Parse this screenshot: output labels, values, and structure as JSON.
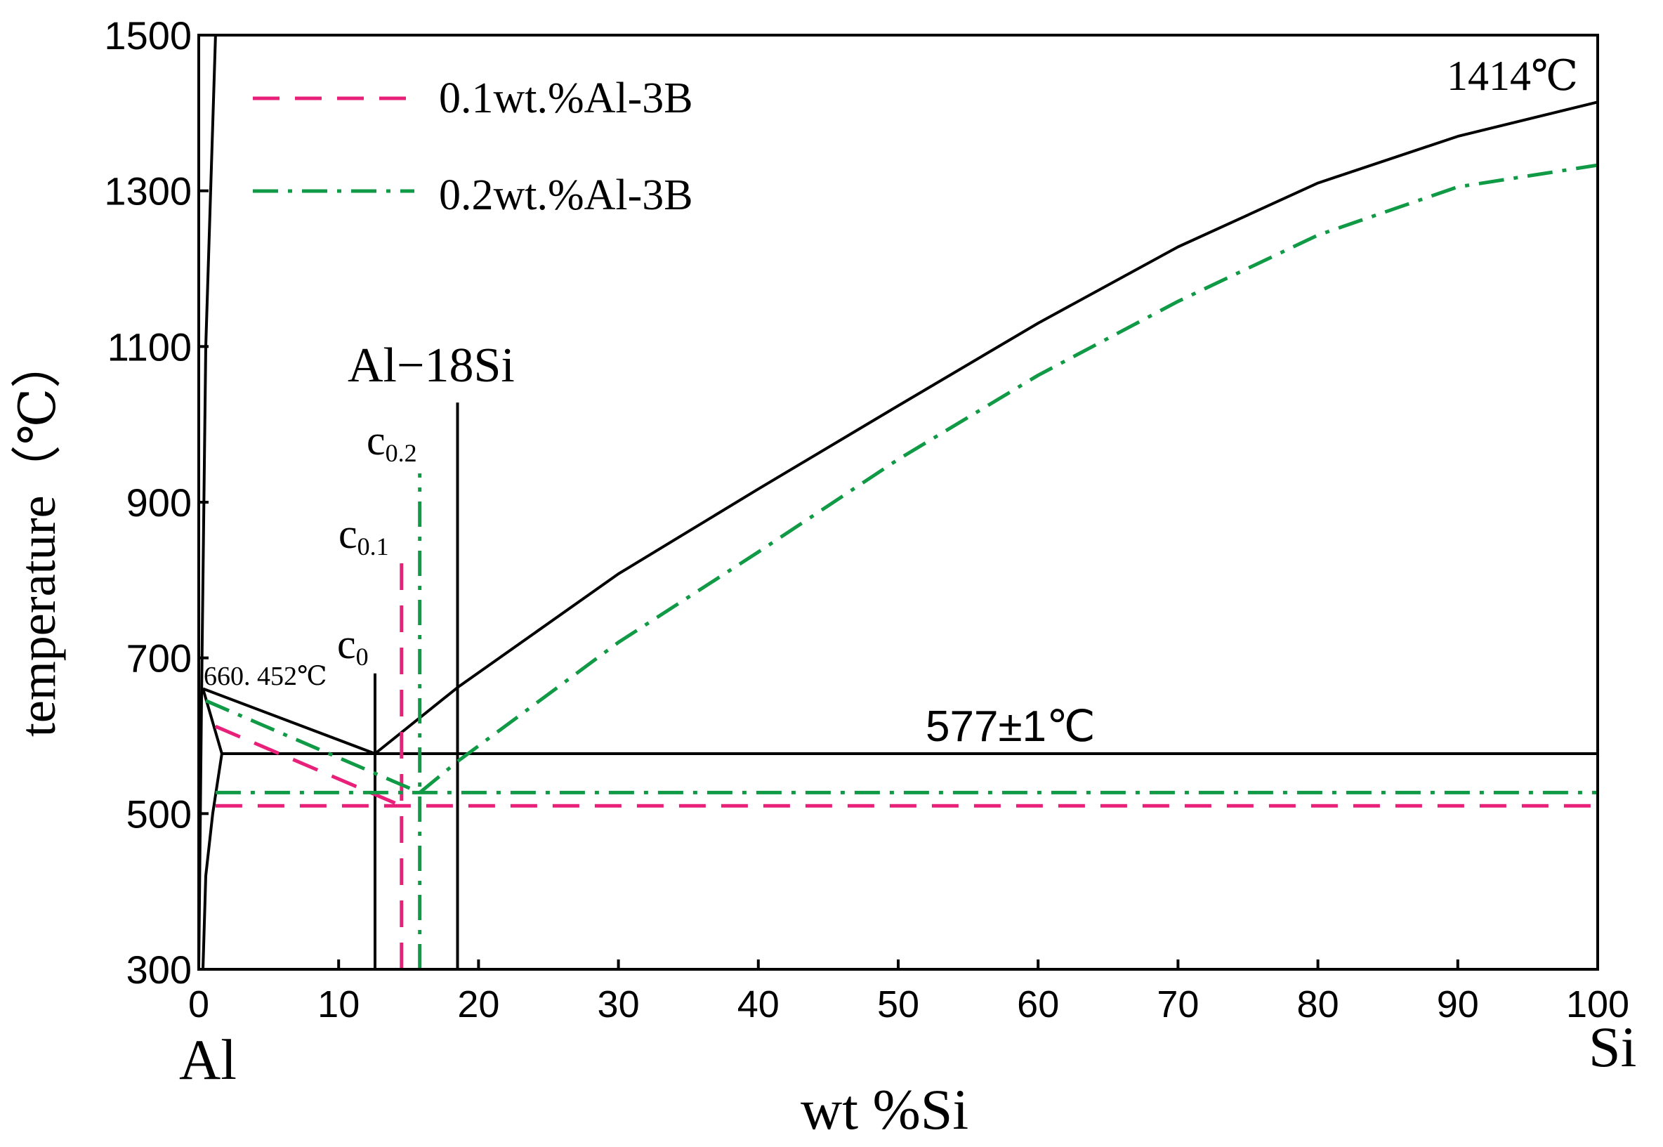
{
  "chart_data": {
    "type": "line",
    "title": "",
    "xlabel": "wt %Si",
    "ylabel": "temperature（℃）",
    "xlim": [
      0,
      100
    ],
    "ylim": [
      300,
      1500
    ],
    "x_ticks": [
      0,
      10,
      20,
      30,
      40,
      50,
      60,
      70,
      80,
      90,
      100
    ],
    "y_ticks": [
      300,
      500,
      700,
      900,
      1100,
      1300,
      1500
    ],
    "x_end_labels": {
      "left": "Al",
      "right": "Si"
    },
    "grid": false,
    "legend": {
      "position": "top-left",
      "entries": [
        {
          "label": "0.1wt.%Al-3B",
          "color": "#e8207a",
          "style": "dashed"
        },
        {
          "label": "0.2wt.%Al-3B",
          "color": "#109a45",
          "style": "dash-dot"
        }
      ]
    },
    "annotations": {
      "melting_si": "1414℃",
      "melting_al": "660. 452℃",
      "eutectic": "577±1℃",
      "alloy": "Al−18Si",
      "c0": "c",
      "c0_sub": "0",
      "c01": "c",
      "c01_sub": "0.1",
      "c02": "c",
      "c02_sub": "0.2"
    },
    "series": [
      {
        "name": "Al melting line",
        "color": "#000000",
        "style": "solid",
        "x": [
          0,
          0.2,
          0.5,
          1.2
        ],
        "y": [
          300,
          650,
          1100,
          1500
        ]
      },
      {
        "name": "liquidus (Al side)",
        "color": "#000000",
        "style": "solid",
        "x": [
          0.3,
          12.6
        ],
        "y": [
          660.452,
          577
        ]
      },
      {
        "name": "liquidus (Si side)",
        "color": "#000000",
        "style": "solid",
        "x": [
          12.6,
          18.5,
          30,
          40,
          50,
          60,
          70,
          80,
          90,
          100
        ],
        "y": [
          577,
          662,
          808,
          917,
          1024,
          1130,
          1228,
          1310,
          1370,
          1414
        ]
      },
      {
        "name": "solidus",
        "color": "#000000",
        "style": "solid",
        "x": [
          0.3,
          1.65
        ],
        "y": [
          660.452,
          577
        ]
      },
      {
        "name": "solvus",
        "color": "#000000",
        "style": "solid",
        "x": [
          0.3,
          0.5,
          1.0,
          1.65
        ],
        "y": [
          300,
          420,
          500,
          577
        ]
      },
      {
        "name": "eutectic line",
        "color": "#000000",
        "style": "solid",
        "x": [
          1.65,
          100
        ],
        "y": [
          577,
          577
        ]
      },
      {
        "name": "Al-18Si composition",
        "color": "#000000",
        "style": "solid",
        "x": [
          18.5,
          18.5
        ],
        "y": [
          300,
          1028
        ]
      },
      {
        "name": "c0 composition",
        "color": "#000000",
        "style": "solid",
        "x": [
          12.6,
          12.6
        ],
        "y": [
          300,
          680
        ]
      },
      {
        "name": "0.1wt.%Al-3B liquidus",
        "color": "#e8207a",
        "style": "dashed",
        "x": [
          1.2,
          14.5
        ],
        "y": [
          612,
          510
        ]
      },
      {
        "name": "0.1wt.%Al-3B eutectic",
        "color": "#e8207a",
        "style": "dashed",
        "x": [
          1.2,
          100
        ],
        "y": [
          510,
          510
        ]
      },
      {
        "name": "0.1wt.%Al-3B composition",
        "color": "#e8207a",
        "style": "dashed",
        "x": [
          14.5,
          14.5
        ],
        "y": [
          300,
          823
        ]
      },
      {
        "name": "0.2wt.%Al-3B liquidus (Al side)",
        "color": "#109a45",
        "style": "dash-dot",
        "x": [
          0.5,
          15.8
        ],
        "y": [
          645,
          527
        ]
      },
      {
        "name": "0.2wt.%Al-3B liquidus (Si side)",
        "color": "#109a45",
        "style": "dash-dot",
        "x": [
          15.8,
          18.5,
          30,
          40,
          50,
          60,
          70,
          80,
          90,
          100
        ],
        "y": [
          527,
          567,
          720,
          836,
          955,
          1063,
          1158,
          1243,
          1305,
          1333
        ]
      },
      {
        "name": "0.2wt.%Al-3B eutectic",
        "color": "#109a45",
        "style": "dash-dot",
        "x": [
          1.2,
          100
        ],
        "y": [
          527,
          527
        ]
      },
      {
        "name": "0.2wt.%Al-3B composition",
        "color": "#109a45",
        "style": "dash-dot",
        "x": [
          15.8,
          15.8
        ],
        "y": [
          300,
          937
        ]
      }
    ]
  }
}
